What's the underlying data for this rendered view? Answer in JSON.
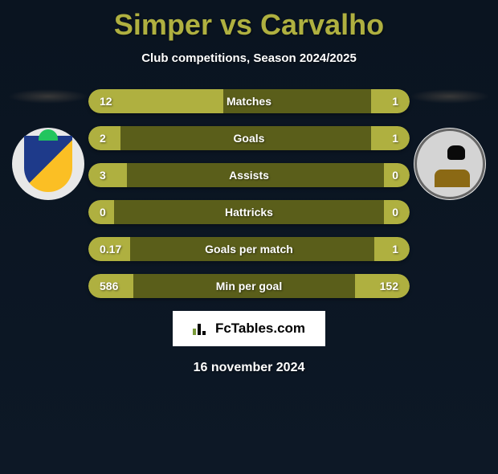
{
  "title": "Simper vs Carvalho",
  "subtitle": "Club competitions, Season 2024/2025",
  "date": "16 november 2024",
  "branding": "FcTables.com",
  "colors": {
    "accent": "#afb040",
    "bar_dark": "#5a5e1a",
    "background_top": "#0a1420",
    "text": "#ffffff"
  },
  "stats": [
    {
      "label": "Matches",
      "left_value": "12",
      "right_value": "1",
      "left_pct": 42,
      "right_pct": 12
    },
    {
      "label": "Goals",
      "left_value": "2",
      "right_value": "1",
      "left_pct": 10,
      "right_pct": 12
    },
    {
      "label": "Assists",
      "left_value": "3",
      "right_value": "0",
      "left_pct": 12,
      "right_pct": 8
    },
    {
      "label": "Hattricks",
      "left_value": "0",
      "right_value": "0",
      "left_pct": 8,
      "right_pct": 8
    },
    {
      "label": "Goals per match",
      "left_value": "0.17",
      "right_value": "1",
      "left_pct": 13,
      "right_pct": 11
    },
    {
      "label": "Min per goal",
      "left_value": "586",
      "right_value": "152",
      "left_pct": 14,
      "right_pct": 17
    }
  ]
}
